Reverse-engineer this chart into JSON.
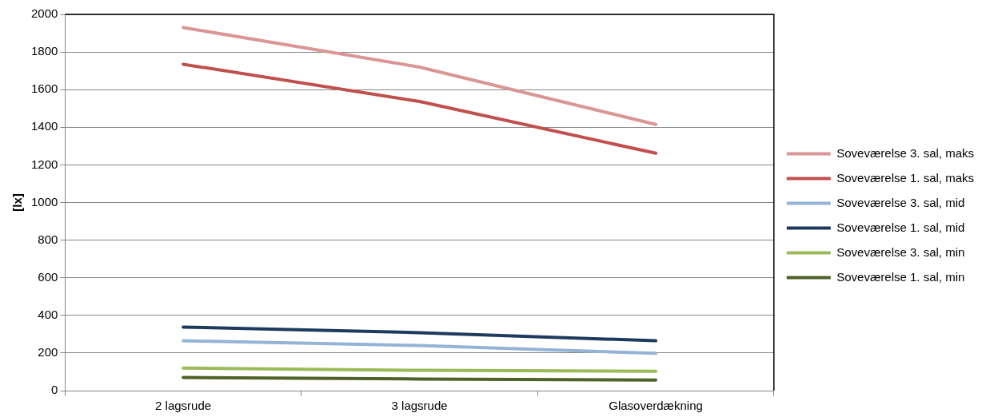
{
  "chart_data": {
    "type": "line",
    "ylabel": "[lx]",
    "categories": [
      "2 lagsrude",
      "3 lagsrude",
      "Glasoverdækning"
    ],
    "ylim": [
      0,
      2000
    ],
    "yticks": [
      0,
      200,
      400,
      600,
      800,
      1000,
      1200,
      1400,
      1600,
      1800,
      2000
    ],
    "grid": "y",
    "legend": "right",
    "marker": "none",
    "line_style": "solid",
    "series": [
      {
        "name": "Soveværelse 3. sal, maks",
        "color": "#d99694",
        "values": [
          1930,
          1720,
          1415
        ]
      },
      {
        "name": "Soveværelse 1. sal, maks",
        "color": "#c0504d",
        "values": [
          1735,
          1537,
          1262
        ]
      },
      {
        "name": "Soveværelse 3. sal, mid",
        "color": "#95b3d7",
        "values": [
          265,
          240,
          198
        ]
      },
      {
        "name": "Soveværelse 1. sal, mid",
        "color": "#1f3a5f",
        "values": [
          338,
          308,
          265
        ]
      },
      {
        "name": "Soveværelse 3. sal, min",
        "color": "#9bbb59",
        "values": [
          120,
          108,
          103
        ]
      },
      {
        "name": "Soveværelse 1. sal, min",
        "color": "#4f6228",
        "values": [
          70,
          62,
          56
        ]
      }
    ]
  }
}
